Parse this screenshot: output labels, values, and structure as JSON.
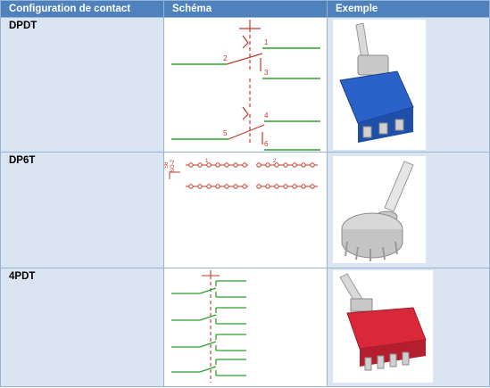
{
  "headers": {
    "config": "Configuration de contact",
    "schema": "Schéma",
    "example": "Exemple"
  },
  "rows": [
    {
      "label": "DPDT",
      "schematic": {
        "pin_labels": [
          "1",
          "2",
          "3",
          "4",
          "5",
          "6"
        ]
      }
    },
    {
      "label": "DP6T",
      "schematic": {
        "switch_names": [
          "S6",
          "SO-2"
        ],
        "pole_labels": [
          "1",
          "2"
        ]
      }
    },
    {
      "label": "4PDT"
    }
  ],
  "colors": {
    "header_bg": "#4f81bd",
    "cell_bg": "#dbe5f1",
    "border": "#95b3d7",
    "wire_green": "#2ca02c",
    "wire_red": "#c0392b",
    "blue_switch": "#2a62c9",
    "red_switch": "#d8283a"
  }
}
